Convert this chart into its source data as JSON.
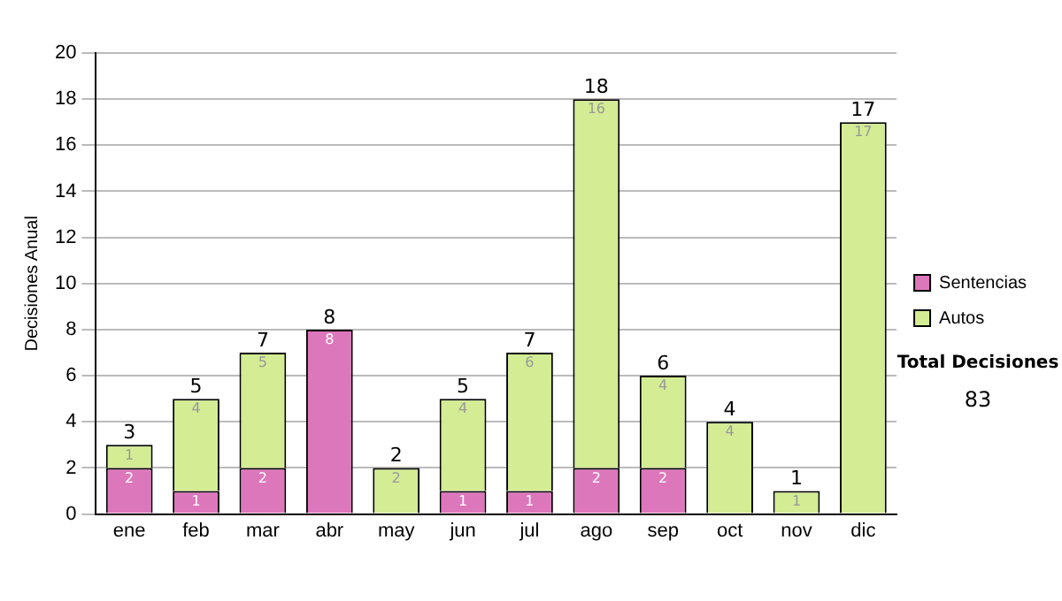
{
  "chart_data": {
    "type": "bar",
    "stacked": true,
    "ylabel": "Decisiones Anual",
    "categories": [
      "ene",
      "feb",
      "mar",
      "abr",
      "may",
      "jun",
      "jul",
      "ago",
      "sep",
      "oct",
      "nov",
      "dic"
    ],
    "series": [
      {
        "name": "Sentencias",
        "color": "#dd77bb",
        "values": [
          2,
          1,
          2,
          8,
          0,
          1,
          1,
          2,
          2,
          0,
          0,
          0
        ],
        "value_labels": [
          "2",
          "1",
          "2",
          "8",
          null,
          "1",
          "1",
          "2",
          "2",
          null,
          null,
          null
        ]
      },
      {
        "name": "Autos",
        "color": "#d4ec94",
        "values": [
          1,
          4,
          5,
          0,
          2,
          4,
          6,
          16,
          4,
          4,
          1,
          17
        ],
        "value_labels": [
          "1",
          "4",
          "5",
          null,
          "2",
          "4",
          "6",
          "16",
          "4",
          "4",
          "1",
          "17"
        ]
      }
    ],
    "totals": [
      "3",
      "5",
      "7",
      "8",
      "2",
      "5",
      "7",
      "18",
      "6",
      "4",
      "1",
      "17"
    ],
    "ylim": [
      0,
      20
    ],
    "yticks": [
      0,
      2,
      4,
      6,
      8,
      10,
      12,
      14,
      16,
      18,
      20
    ],
    "grid": "y",
    "legend": "right",
    "annotations": [
      "Total Decisiones",
      "83"
    ]
  }
}
